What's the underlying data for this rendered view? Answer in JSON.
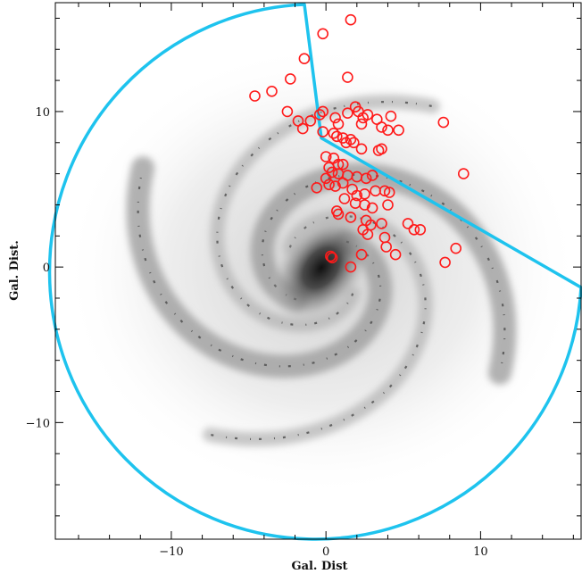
{
  "chart_data": {
    "type": "scatter",
    "title": "",
    "xlabel": "Gal. Dist",
    "ylabel": "Gal. Dist.",
    "xlim": [
      -17.5,
      16.5
    ],
    "ylim": [
      -17.5,
      17
    ],
    "x_ticks": [
      -10,
      0,
      10
    ],
    "y_ticks": [
      -10,
      0,
      10
    ],
    "grid": false,
    "background": "grayscale spiral galaxy map (Milky Way)",
    "series": [
      {
        "marker": "open-circle",
        "color": "#ff1a1a",
        "points": [
          [
            1.6,
            15.9
          ],
          [
            -0.2,
            15.0
          ],
          [
            -1.4,
            13.4
          ],
          [
            1.4,
            12.2
          ],
          [
            -2.3,
            12.1
          ],
          [
            -4.6,
            11.0
          ],
          [
            -3.5,
            11.3
          ],
          [
            -2.5,
            10.0
          ],
          [
            -0.2,
            10.0
          ],
          [
            -0.4,
            9.8
          ],
          [
            -1.0,
            9.4
          ],
          [
            -1.8,
            9.4
          ],
          [
            -1.5,
            8.9
          ],
          [
            0.6,
            9.6
          ],
          [
            0.8,
            9.2
          ],
          [
            1.4,
            9.9
          ],
          [
            1.9,
            10.3
          ],
          [
            2.1,
            10.0
          ],
          [
            2.4,
            9.6
          ],
          [
            2.3,
            9.2
          ],
          [
            2.7,
            9.8
          ],
          [
            3.3,
            9.5
          ],
          [
            3.6,
            9.0
          ],
          [
            4.2,
            9.7
          ],
          [
            4.0,
            8.8
          ],
          [
            4.7,
            8.8
          ],
          [
            7.6,
            9.3
          ],
          [
            -0.2,
            8.7
          ],
          [
            0.5,
            8.6
          ],
          [
            0.7,
            8.4
          ],
          [
            1.1,
            8.3
          ],
          [
            1.3,
            8.0
          ],
          [
            1.6,
            8.2
          ],
          [
            1.8,
            8.0
          ],
          [
            2.3,
            7.6
          ],
          [
            3.6,
            7.6
          ],
          [
            3.4,
            7.5
          ],
          [
            0.0,
            7.1
          ],
          [
            0.5,
            7.0
          ],
          [
            0.8,
            6.6
          ],
          [
            1.1,
            6.6
          ],
          [
            0.2,
            6.4
          ],
          [
            0.4,
            6.1
          ],
          [
            0.8,
            6.0
          ],
          [
            1.4,
            5.9
          ],
          [
            2.0,
            5.8
          ],
          [
            2.6,
            5.7
          ],
          [
            3.0,
            5.9
          ],
          [
            0.0,
            5.7
          ],
          [
            0.2,
            5.3
          ],
          [
            0.6,
            5.2
          ],
          [
            1.1,
            5.4
          ],
          [
            -0.6,
            5.1
          ],
          [
            1.7,
            5.0
          ],
          [
            2.0,
            4.6
          ],
          [
            2.5,
            4.7
          ],
          [
            3.2,
            4.9
          ],
          [
            3.8,
            4.9
          ],
          [
            4.1,
            4.8
          ],
          [
            1.2,
            4.4
          ],
          [
            1.9,
            4.1
          ],
          [
            2.5,
            4.0
          ],
          [
            3.0,
            3.8
          ],
          [
            4.0,
            4.0
          ],
          [
            0.7,
            3.6
          ],
          [
            0.8,
            3.4
          ],
          [
            1.6,
            3.2
          ],
          [
            2.6,
            3.0
          ],
          [
            2.9,
            2.7
          ],
          [
            2.4,
            2.4
          ],
          [
            2.7,
            2.1
          ],
          [
            3.6,
            2.8
          ],
          [
            5.3,
            2.8
          ],
          [
            5.7,
            2.4
          ],
          [
            6.1,
            2.4
          ],
          [
            3.8,
            1.9
          ],
          [
            3.9,
            1.3
          ],
          [
            8.9,
            6.0
          ],
          [
            8.4,
            1.2
          ],
          [
            7.7,
            0.3
          ],
          [
            4.5,
            0.8
          ],
          [
            2.3,
            0.8
          ],
          [
            1.6,
            0.0
          ],
          [
            0.3,
            0.7
          ],
          [
            0.4,
            0.6
          ]
        ]
      }
    ],
    "annotations": [
      {
        "type": "region-outline",
        "shape": "disk-minus-sector",
        "color": "#1ec3ee",
        "radius": 17.2,
        "sector_apex": [
          -0.3,
          8.3
        ]
      }
    ]
  }
}
